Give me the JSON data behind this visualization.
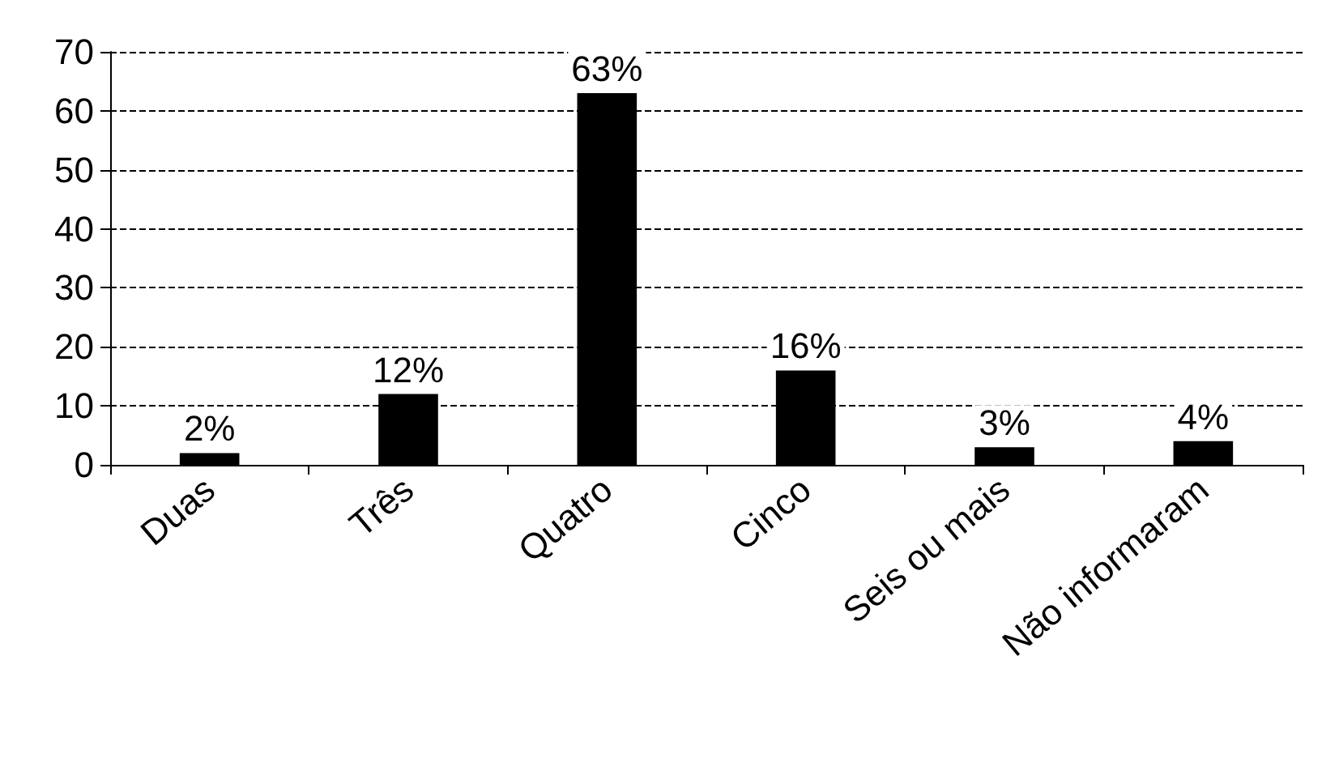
{
  "chart_data": {
    "type": "bar",
    "categories": [
      "Duas",
      "Três",
      "Quatro",
      "Cinco",
      "Seis ou mais",
      "Não informaram"
    ],
    "values": [
      2,
      12,
      63,
      16,
      3,
      4
    ],
    "value_labels": [
      "2%",
      "12%",
      "63%",
      "16%",
      "3%",
      "4%"
    ],
    "color": "#000000",
    "ylim": [
      0,
      70
    ],
    "yticks": [
      0,
      10,
      20,
      30,
      40,
      50,
      60,
      70
    ],
    "grid": "y"
  }
}
